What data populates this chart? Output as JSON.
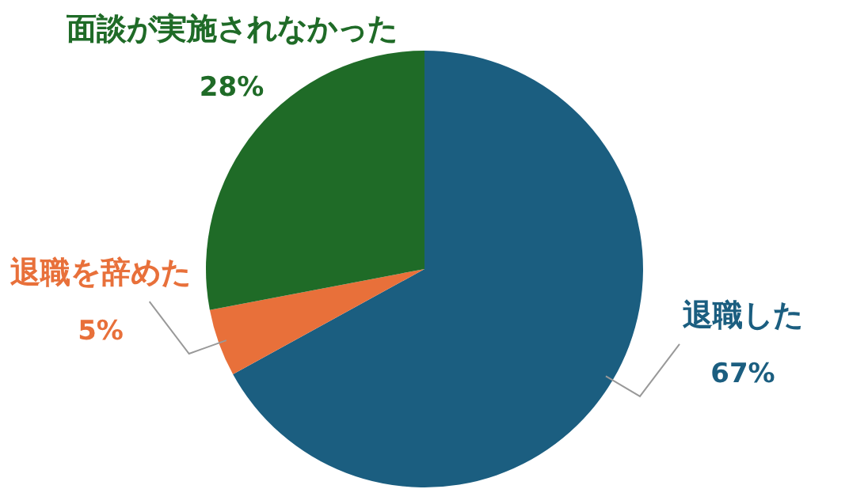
{
  "chart_data": {
    "type": "pie",
    "categories": [
      "退職した",
      "退職を辞めた",
      "面談が実施されなかった"
    ],
    "values": [
      67,
      5,
      28
    ],
    "value_labels": [
      "67%",
      "5%",
      "28%"
    ],
    "colors": [
      "#1b5e80",
      "#e8703a",
      "#1f6b27"
    ]
  }
}
